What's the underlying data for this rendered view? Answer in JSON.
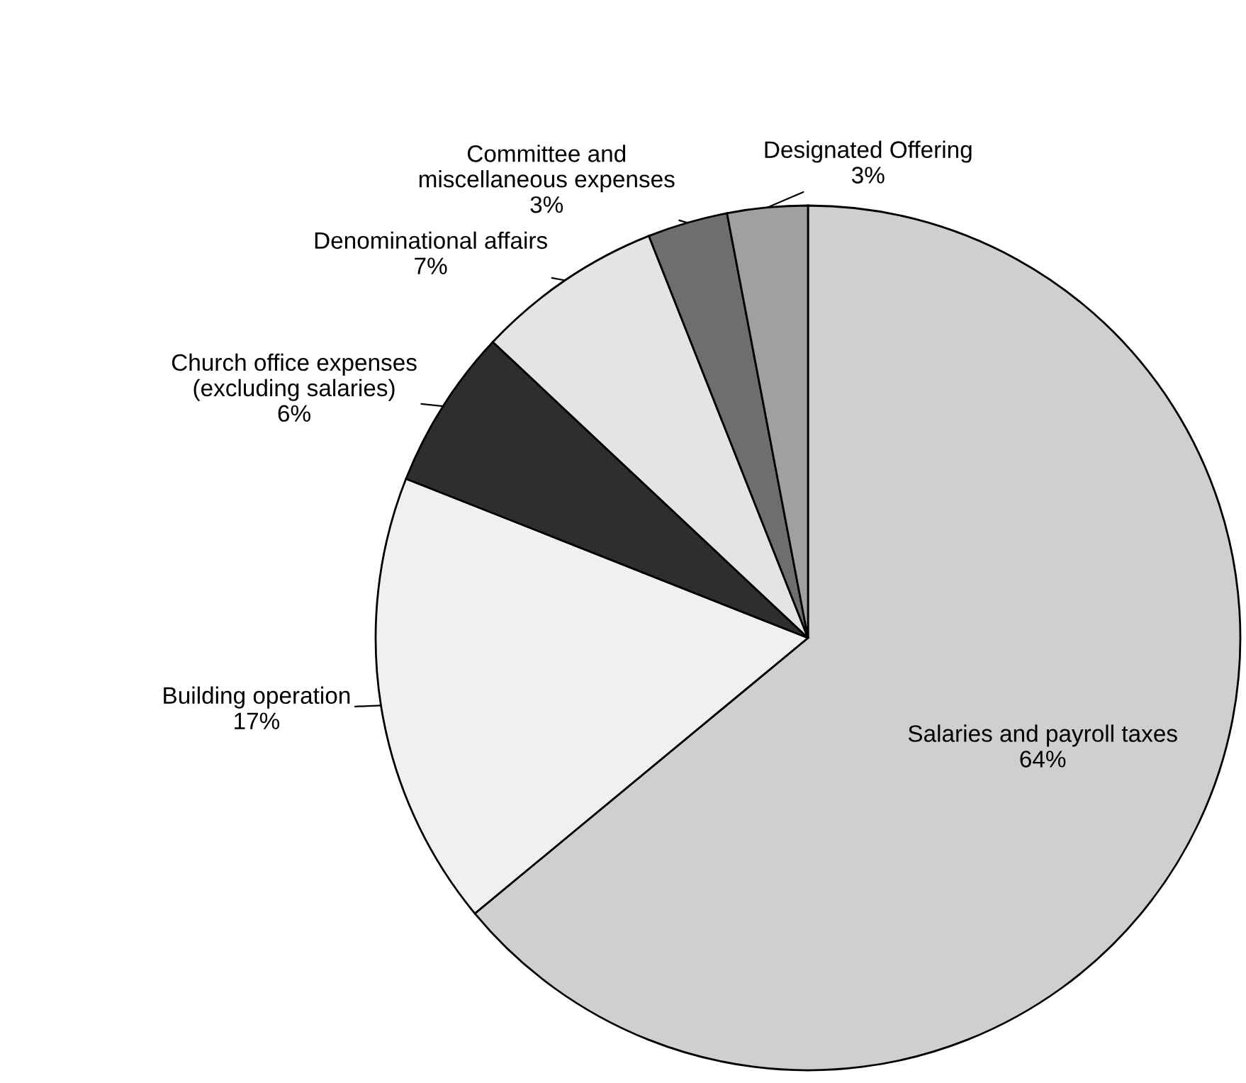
{
  "chart_data": {
    "type": "pie",
    "categories": [
      "Salaries and payroll taxes",
      "Building operation",
      "Church office expenses\n(excluding salaries)",
      "Denominational affairs",
      "Committee and\nmiscellaneous expenses",
      "Designated Offering"
    ],
    "values": [
      64,
      17,
      6,
      7,
      3,
      3
    ],
    "colors": [
      "#cfcfcf",
      "#f0f0f0",
      "#2e2e2e",
      "#e4e4e4",
      "#6e6e6e",
      "#a0a0a0"
    ],
    "value_labels": [
      "64%",
      "17%",
      "6%",
      "7%",
      "3%",
      "3%"
    ],
    "legend": false
  }
}
